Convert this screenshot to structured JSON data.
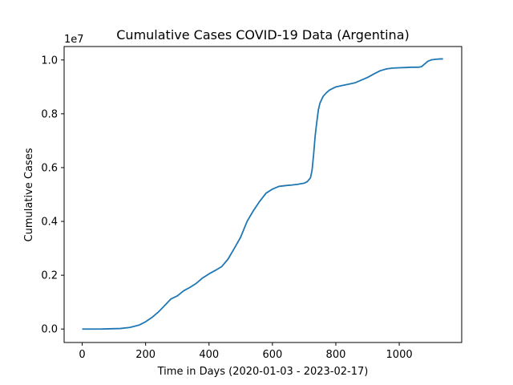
{
  "chart_data": {
    "type": "line",
    "title": "Cumulative Cases COVID-19 Data (Argentina)",
    "xlabel": "Time in Days (2020-01-03 - 2023-02-17)",
    "ylabel": "Cumulative Cases",
    "y_offset_label": "1e7",
    "xlim": [
      -57,
      1197
    ],
    "ylim": [
      -0.05,
      1.05
    ],
    "grid": false,
    "x_ticks": [
      0,
      200,
      400,
      600,
      800,
      1000
    ],
    "x_tick_labels": [
      "0",
      "200",
      "400",
      "600",
      "800",
      "1000"
    ],
    "y_ticks": [
      0.0,
      0.2,
      0.4,
      0.6,
      0.8,
      1.0
    ],
    "y_tick_labels": [
      "0.0",
      "0.2",
      "0.4",
      "0.6",
      "0.8",
      "1.0"
    ],
    "series": [
      {
        "color": "#1f77b4",
        "x": [
          0,
          60,
          120,
          150,
          180,
          200,
          220,
          240,
          260,
          280,
          300,
          320,
          340,
          360,
          380,
          400,
          420,
          440,
          460,
          480,
          500,
          520,
          540,
          560,
          580,
          600,
          620,
          640,
          660,
          680,
          700,
          710,
          720,
          725,
          730,
          735,
          740,
          745,
          750,
          760,
          770,
          780,
          800,
          820,
          840,
          860,
          880,
          900,
          920,
          940,
          960,
          980,
          1000,
          1020,
          1040,
          1060,
          1070,
          1080,
          1090,
          1100,
          1110,
          1120,
          1130,
          1138
        ],
        "y": [
          0.0,
          0.0,
          0.002,
          0.006,
          0.015,
          0.027,
          0.043,
          0.063,
          0.087,
          0.112,
          0.123,
          0.142,
          0.155,
          0.17,
          0.19,
          0.205,
          0.218,
          0.232,
          0.26,
          0.3,
          0.342,
          0.4,
          0.44,
          0.475,
          0.505,
          0.52,
          0.53,
          0.533,
          0.535,
          0.538,
          0.542,
          0.548,
          0.562,
          0.59,
          0.65,
          0.72,
          0.77,
          0.815,
          0.84,
          0.865,
          0.878,
          0.888,
          0.9,
          0.905,
          0.91,
          0.915,
          0.925,
          0.935,
          0.948,
          0.96,
          0.967,
          0.97,
          0.971,
          0.972,
          0.973,
          0.973,
          0.975,
          0.985,
          0.995,
          1.0,
          1.002,
          1.003,
          1.004,
          1.004
        ]
      }
    ]
  }
}
